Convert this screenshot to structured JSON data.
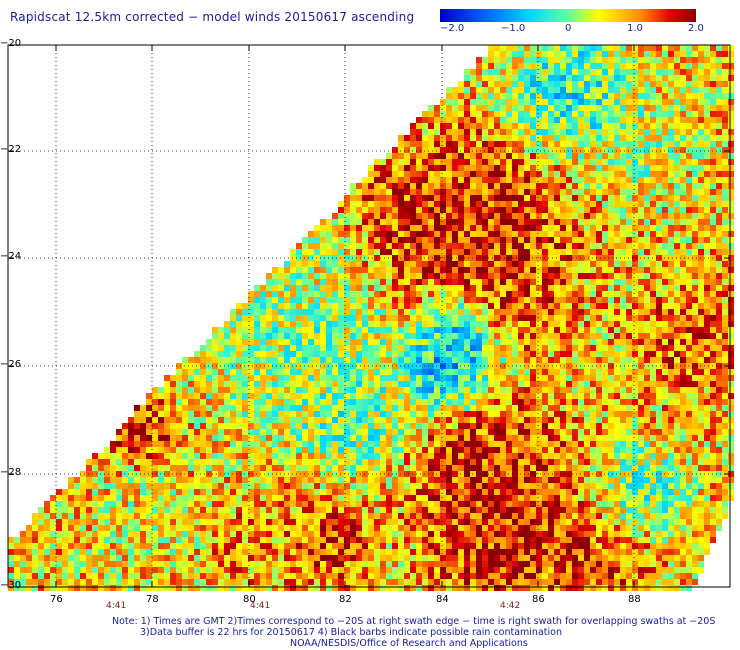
{
  "title": "Rapidscat 12.5km corrected − model winds 20150617 ascending",
  "colorbar": {
    "labels": [
      "−2.0",
      "−1.0",
      "0",
      "1.0",
      "2.0"
    ],
    "colors": [
      "#0000c8",
      "#00b4ff",
      "#40ffc0",
      "#ffff00",
      "#ff8000",
      "#e00000",
      "#8b0000"
    ]
  },
  "axes": {
    "lat_ticks": [
      "−20",
      "−22",
      "−24",
      "−26",
      "−28",
      "−30"
    ],
    "lon_ticks": [
      "76",
      "78",
      "80",
      "82",
      "84",
      "86",
      "88"
    ]
  },
  "times": [
    "4:41",
    "4:41",
    "4:42"
  ],
  "notes": {
    "line1": "Note: 1) Times are GMT 2)Times correspond to −20S at right swath edge − time is right swath for overlapping swaths at −20S",
    "line2": "3)Data buffer is 22 hrs for 20150617 4) Black barbs indicate possible rain contamination",
    "line3": "NOAA/NESDIS/Office of Research and Applications"
  }
}
